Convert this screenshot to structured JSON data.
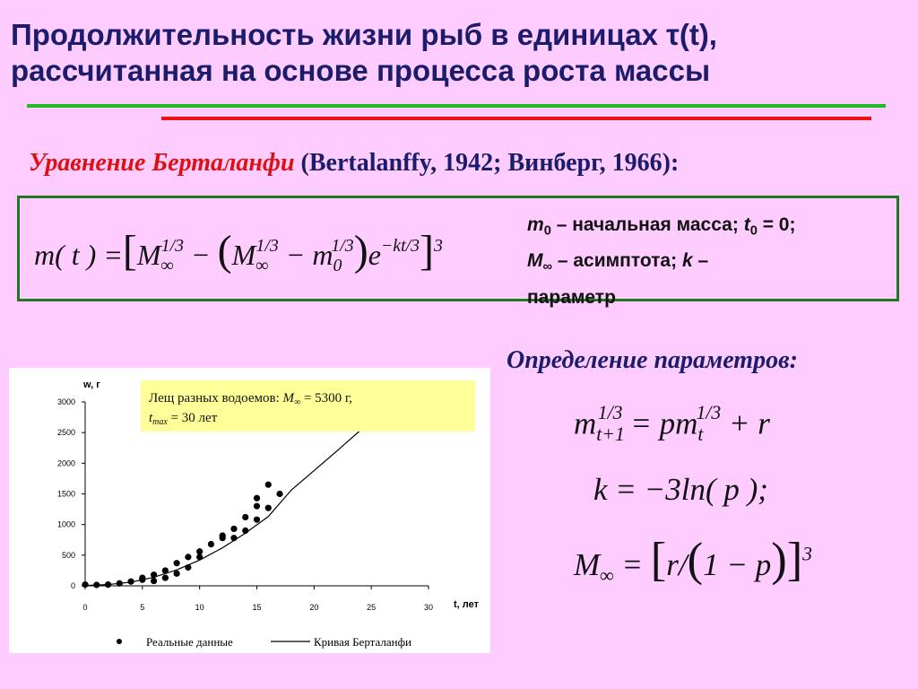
{
  "title": {
    "line1": "Продолжительность жизни рыб в единицах τ(t),",
    "line2": "рассчитанная на основе процесса роста массы"
  },
  "equation_heading": {
    "name": "Уравнение Берталанфи",
    "refs": "(Bertalanffy, 1942; Винберг, 1966):"
  },
  "formula_main": [
    "m( t ) =",
    "[",
    "M",
    "∞",
    "1/3",
    " − ",
    "(",
    "M",
    "∞",
    "1/3",
    " − m",
    "0",
    "1/3",
    ")",
    "e",
    "−kt/3",
    "]",
    "3"
  ],
  "note": [
    "m",
    "0",
    " – начальная масса; ",
    "t",
    "0",
    " = 0;",
    "M",
    "∞",
    " – асимптота; ",
    "k",
    " –",
    "параметр"
  ],
  "params_heading": "Определение параметров:",
  "formula_a": [
    "m",
    "t+1",
    "1/3",
    " = pm",
    "t",
    "1/3",
    " + r"
  ],
  "formula_b": "k = −3ln( p );",
  "formula_c": [
    "M",
    "∞",
    " = ",
    "[",
    "r",
    "/",
    "(",
    "1 − p",
    ")",
    "]",
    "3"
  ],
  "chart_data": {
    "type": "scatter",
    "annotation": [
      "Лещ разных водоемов: ",
      "M",
      "∞",
      " = 5300 г,",
      "t",
      "max",
      " = 30 лет"
    ],
    "xlabel": "t, лет",
    "ylabel": "w, г",
    "xlim": [
      0,
      30
    ],
    "xticks": [
      0,
      5,
      10,
      15,
      20,
      25,
      30
    ],
    "ylim": [
      0,
      3000
    ],
    "yticks": [
      0,
      500,
      1000,
      1500,
      2000,
      2500,
      3000
    ],
    "series": [
      {
        "name": "Реальные данные",
        "color": "#000000",
        "x": [
          0,
          1,
          2,
          3,
          4,
          5,
          5,
          6,
          6,
          7,
          7,
          8,
          8,
          9,
          9,
          10,
          10,
          11,
          12,
          12,
          13,
          13,
          14,
          14,
          15,
          15,
          15,
          16,
          16,
          17
        ],
        "values": [
          20,
          15,
          20,
          40,
          70,
          100,
          130,
          80,
          180,
          130,
          250,
          200,
          370,
          300,
          470,
          470,
          560,
          680,
          780,
          820,
          780,
          930,
          900,
          1120,
          1080,
          1300,
          1430,
          1270,
          1650,
          1500
        ]
      },
      {
        "name": "Кривая Берталанфи",
        "color": "#000000",
        "type": "line",
        "x": [
          0,
          2,
          4,
          6,
          8,
          10,
          12,
          14,
          16,
          18,
          20,
          22,
          24
        ],
        "values": [
          5,
          20,
          60,
          140,
          260,
          420,
          620,
          860,
          1130,
          1560,
          1880,
          2200,
          2530
        ]
      }
    ]
  }
}
